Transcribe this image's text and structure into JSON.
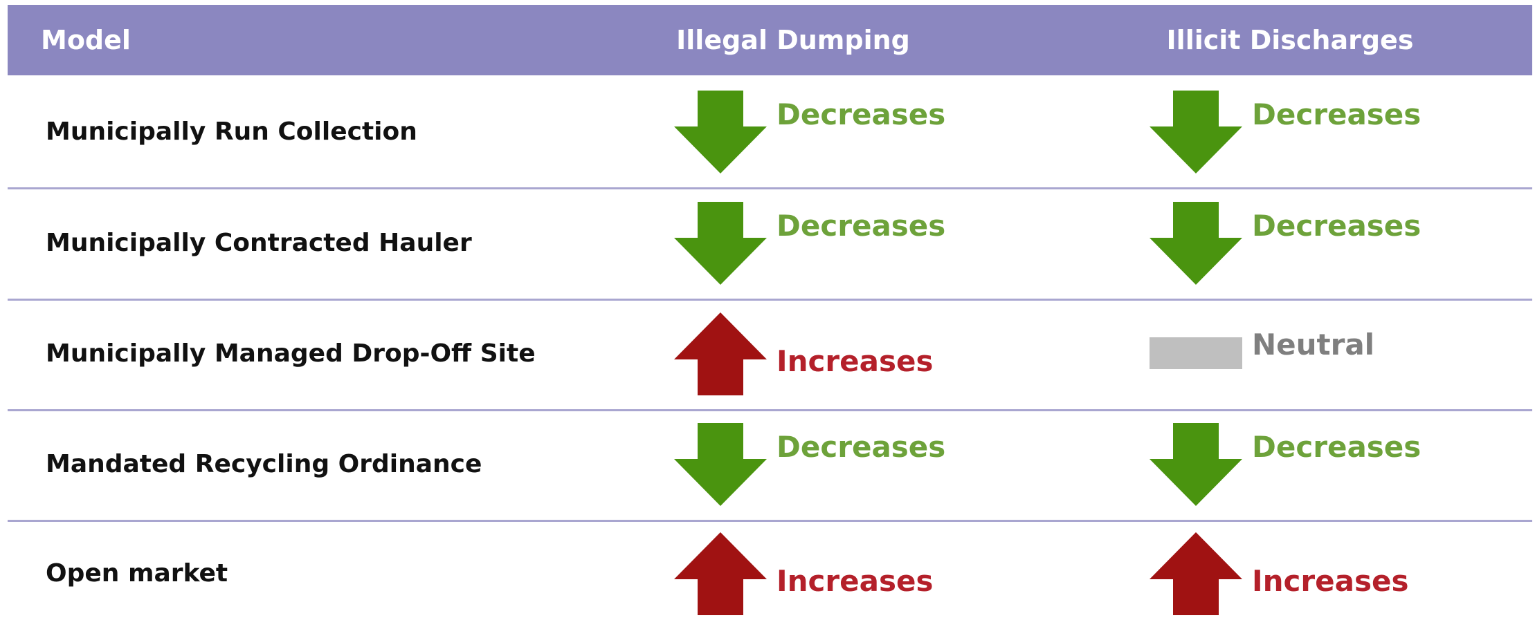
{
  "header": {
    "columns": [
      "Model",
      "Illegal Dumping",
      "Illicit Discharges"
    ]
  },
  "rows": [
    {
      "model": "Municipally Run Collection",
      "illegal_dumping": {
        "text": "Decreases",
        "icon": "down"
      },
      "illicit_discharges": {
        "text": "Decreases",
        "icon": "down"
      }
    },
    {
      "model": "Municipally Contracted Hauler",
      "illegal_dumping": {
        "text": "Decreases",
        "icon": "down"
      },
      "illicit_discharges": {
        "text": "Decreases",
        "icon": "down"
      }
    },
    {
      "model": "Municipally Managed Drop-Off Site",
      "illegal_dumping": {
        "text": "Increases",
        "icon": "up"
      },
      "illicit_discharges": {
        "text": "Neutral",
        "icon": "bar"
      }
    },
    {
      "model": "Mandated Recycling Ordinance",
      "illegal_dumping": {
        "text": "Decreases",
        "icon": "down"
      },
      "illicit_discharges": {
        "text": "Decreases",
        "icon": "down"
      }
    },
    {
      "model": "Open market",
      "illegal_dumping": {
        "text": "Increases",
        "icon": "up"
      },
      "illicit_discharges": {
        "text": "Increases",
        "icon": "up"
      }
    }
  ]
}
